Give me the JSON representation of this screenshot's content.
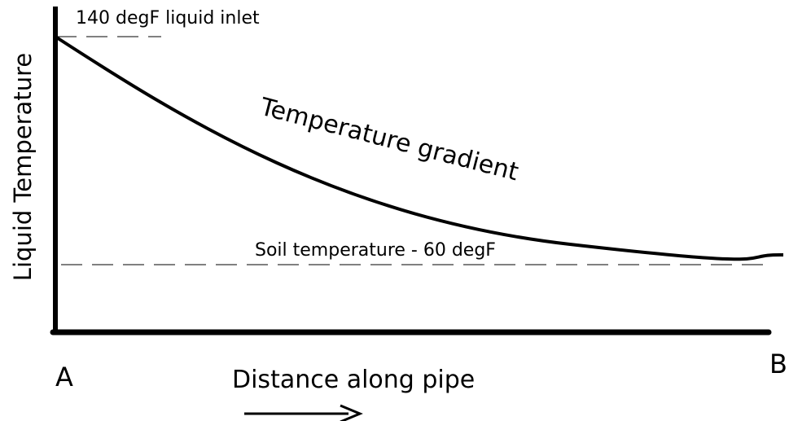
{
  "y_axis_label": "Liquid Temperature",
  "inlet_label": "140 degF liquid inlet",
  "curve_label": "Temperature gradient",
  "soil_label": "Soil temperature - 60 degF",
  "start_label": "A",
  "end_label": "B",
  "x_axis_label": "Distance along pipe"
}
